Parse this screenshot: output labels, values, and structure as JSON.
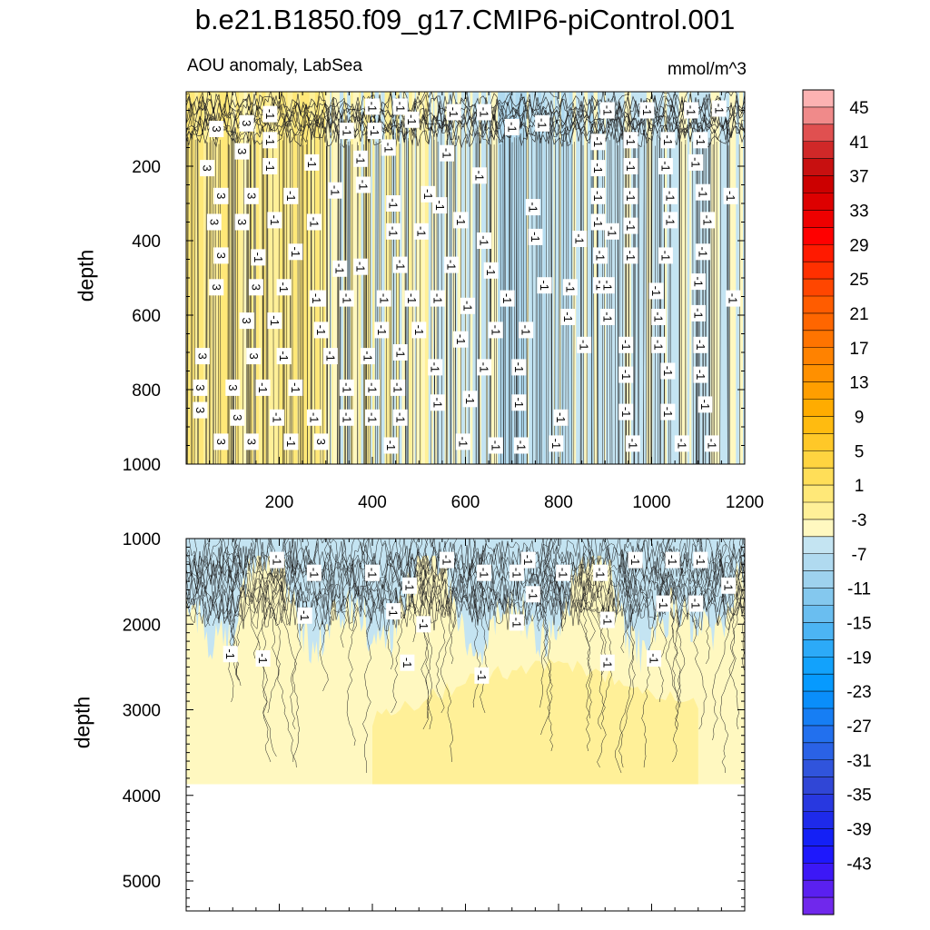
{
  "title": "b.e21.B1850.f09_g17.CMIP6-piControl.001",
  "subtitle": "AOU anomaly, LabSea",
  "units": "mmol/m^3",
  "chart_data": [
    {
      "type": "contour",
      "panel": "upper",
      "xlabel": "",
      "ylabel": "depth",
      "xlim": [
        0,
        1200
      ],
      "ylim": [
        1000,
        0
      ],
      "xticks": [
        "200",
        "400",
        "600",
        "800",
        "1000",
        "1200"
      ],
      "xtick_values": [
        200,
        400,
        600,
        800,
        1000,
        1200
      ],
      "yticks": [
        "200",
        "400",
        "600",
        "800",
        "1000"
      ],
      "ytick_values": [
        200,
        400,
        600,
        800,
        1000
      ],
      "zones": [
        {
          "x": [
            0,
            340
          ],
          "level": 3
        },
        {
          "x": [
            340,
            560
          ],
          "level": 1
        },
        {
          "x": [
            560,
            900
          ],
          "level": -1
        },
        {
          "x": [
            900,
            1200
          ],
          "level": -1
        }
      ],
      "labels": [
        {
          "text": "3",
          "x": 65,
          "y": 100
        },
        {
          "text": "3",
          "x": 130,
          "y": 85
        },
        {
          "text": "-1",
          "x": 180,
          "y": 60
        },
        {
          "text": "3",
          "x": 120,
          "y": 160
        },
        {
          "text": "-1",
          "x": 180,
          "y": 130
        },
        {
          "text": "3",
          "x": 45,
          "y": 205
        },
        {
          "text": "-1",
          "x": 180,
          "y": 200
        },
        {
          "text": "-1",
          "x": 270,
          "y": 190
        },
        {
          "text": "3",
          "x": 75,
          "y": 280
        },
        {
          "text": "3",
          "x": 140,
          "y": 280
        },
        {
          "text": "-1",
          "x": 225,
          "y": 280
        },
        {
          "text": "3",
          "x": 60,
          "y": 350
        },
        {
          "text": "3",
          "x": 120,
          "y": 350
        },
        {
          "text": "-1",
          "x": 190,
          "y": 345
        },
        {
          "text": "-1",
          "x": 275,
          "y": 350
        },
        {
          "text": "3",
          "x": 75,
          "y": 440
        },
        {
          "text": "-1",
          "x": 155,
          "y": 445
        },
        {
          "text": "-1",
          "x": 235,
          "y": 430
        },
        {
          "text": "3",
          "x": 65,
          "y": 525
        },
        {
          "text": "3",
          "x": 150,
          "y": 525
        },
        {
          "text": "-1",
          "x": 210,
          "y": 525
        },
        {
          "text": "-1",
          "x": 285,
          "y": 555
        },
        {
          "text": "3",
          "x": 130,
          "y": 615
        },
        {
          "text": "-1",
          "x": 190,
          "y": 615
        },
        {
          "text": "-1",
          "x": 290,
          "y": 640
        },
        {
          "text": "3",
          "x": 35,
          "y": 710
        },
        {
          "text": "3",
          "x": 145,
          "y": 710
        },
        {
          "text": "-1",
          "x": 210,
          "y": 710
        },
        {
          "text": "3",
          "x": 30,
          "y": 795
        },
        {
          "text": "3",
          "x": 100,
          "y": 795
        },
        {
          "text": "-1",
          "x": 165,
          "y": 795
        },
        {
          "text": "-1",
          "x": 235,
          "y": 795
        },
        {
          "text": "3",
          "x": 30,
          "y": 855
        },
        {
          "text": "3",
          "x": 110,
          "y": 875
        },
        {
          "text": "-1",
          "x": 195,
          "y": 875
        },
        {
          "text": "-1",
          "x": 275,
          "y": 875
        },
        {
          "text": "3",
          "x": 75,
          "y": 940
        },
        {
          "text": "3",
          "x": 140,
          "y": 940
        },
        {
          "text": "-1",
          "x": 225,
          "y": 940
        },
        {
          "text": "3",
          "x": 290,
          "y": 940
        },
        {
          "text": "-1",
          "x": 400,
          "y": 40
        },
        {
          "text": "-1",
          "x": 460,
          "y": 40
        },
        {
          "text": "-1",
          "x": 345,
          "y": 105
        },
        {
          "text": "-1",
          "x": 405,
          "y": 105
        },
        {
          "text": "-1",
          "x": 485,
          "y": 75
        },
        {
          "text": "-1",
          "x": 575,
          "y": 55
        },
        {
          "text": "-1",
          "x": 640,
          "y": 55
        },
        {
          "text": "-1",
          "x": 700,
          "y": 95
        },
        {
          "text": "-1",
          "x": 765,
          "y": 85
        },
        {
          "text": "-1",
          "x": 435,
          "y": 150
        },
        {
          "text": "-1",
          "x": 375,
          "y": 180
        },
        {
          "text": "-1",
          "x": 560,
          "y": 165
        },
        {
          "text": "-1",
          "x": 630,
          "y": 225
        },
        {
          "text": "-1",
          "x": 520,
          "y": 275
        },
        {
          "text": "-1",
          "x": 320,
          "y": 265
        },
        {
          "text": "-1",
          "x": 380,
          "y": 250
        },
        {
          "text": "-1",
          "x": 445,
          "y": 300
        },
        {
          "text": "-1",
          "x": 545,
          "y": 305
        },
        {
          "text": "-1",
          "x": 445,
          "y": 375
        },
        {
          "text": "-1",
          "x": 505,
          "y": 375
        },
        {
          "text": "-1",
          "x": 590,
          "y": 345
        },
        {
          "text": "-1",
          "x": 640,
          "y": 400
        },
        {
          "text": "-1",
          "x": 745,
          "y": 310
        },
        {
          "text": "-1",
          "x": 330,
          "y": 475
        },
        {
          "text": "-1",
          "x": 375,
          "y": 470
        },
        {
          "text": "-1",
          "x": 460,
          "y": 465
        },
        {
          "text": "-1",
          "x": 570,
          "y": 465
        },
        {
          "text": "-1",
          "x": 655,
          "y": 480
        },
        {
          "text": "-1",
          "x": 750,
          "y": 390
        },
        {
          "text": "-1",
          "x": 845,
          "y": 395
        },
        {
          "text": "-1",
          "x": 915,
          "y": 375
        },
        {
          "text": "-1",
          "x": 280,
          "y": 555
        },
        {
          "text": "-1",
          "x": 345,
          "y": 555
        },
        {
          "text": "-1",
          "x": 425,
          "y": 555
        },
        {
          "text": "-1",
          "x": 485,
          "y": 555
        },
        {
          "text": "-1",
          "x": 540,
          "y": 555
        },
        {
          "text": "-1",
          "x": 605,
          "y": 575
        },
        {
          "text": "-1",
          "x": 690,
          "y": 555
        },
        {
          "text": "-1",
          "x": 770,
          "y": 520
        },
        {
          "text": "-1",
          "x": 825,
          "y": 525
        },
        {
          "text": "-1",
          "x": 890,
          "y": 520
        },
        {
          "text": "-1",
          "x": 420,
          "y": 640
        },
        {
          "text": "-1",
          "x": 500,
          "y": 640
        },
        {
          "text": "-1",
          "x": 590,
          "y": 665
        },
        {
          "text": "-1",
          "x": 665,
          "y": 640
        },
        {
          "text": "-1",
          "x": 730,
          "y": 640
        },
        {
          "text": "-1",
          "x": 820,
          "y": 605
        },
        {
          "text": "-1",
          "x": 855,
          "y": 680
        },
        {
          "text": "-1",
          "x": 310,
          "y": 710
        },
        {
          "text": "-1",
          "x": 390,
          "y": 710
        },
        {
          "text": "-1",
          "x": 460,
          "y": 700
        },
        {
          "text": "-1",
          "x": 535,
          "y": 740
        },
        {
          "text": "-1",
          "x": 640,
          "y": 740
        },
        {
          "text": "-1",
          "x": 715,
          "y": 740
        },
        {
          "text": "-1",
          "x": 345,
          "y": 795
        },
        {
          "text": "-1",
          "x": 400,
          "y": 795
        },
        {
          "text": "-1",
          "x": 455,
          "y": 795
        },
        {
          "text": "-1",
          "x": 540,
          "y": 835
        },
        {
          "text": "-1",
          "x": 610,
          "y": 825
        },
        {
          "text": "-1",
          "x": 715,
          "y": 835
        },
        {
          "text": "-1",
          "x": 345,
          "y": 875
        },
        {
          "text": "-1",
          "x": 400,
          "y": 875
        },
        {
          "text": "-1",
          "x": 460,
          "y": 875
        },
        {
          "text": "-1",
          "x": 805,
          "y": 875
        },
        {
          "text": "-1",
          "x": 440,
          "y": 950
        },
        {
          "text": "-1",
          "x": 595,
          "y": 940
        },
        {
          "text": "-1",
          "x": 665,
          "y": 950
        },
        {
          "text": "-1",
          "x": 720,
          "y": 950
        },
        {
          "text": "-1",
          "x": 795,
          "y": 945
        },
        {
          "text": "-1",
          "x": 905,
          "y": 50
        },
        {
          "text": "-1",
          "x": 990,
          "y": 50
        },
        {
          "text": "-1",
          "x": 1085,
          "y": 50
        },
        {
          "text": "-1",
          "x": 1145,
          "y": 45
        },
        {
          "text": "-1",
          "x": 885,
          "y": 135
        },
        {
          "text": "-1",
          "x": 955,
          "y": 130
        },
        {
          "text": "-1",
          "x": 1035,
          "y": 130
        },
        {
          "text": "-1",
          "x": 1105,
          "y": 130
        },
        {
          "text": "-1",
          "x": 885,
          "y": 205
        },
        {
          "text": "-1",
          "x": 955,
          "y": 200
        },
        {
          "text": "-1",
          "x": 1030,
          "y": 200
        },
        {
          "text": "-1",
          "x": 1095,
          "y": 190
        },
        {
          "text": "-1",
          "x": 885,
          "y": 280
        },
        {
          "text": "-1",
          "x": 955,
          "y": 280
        },
        {
          "text": "-1",
          "x": 1040,
          "y": 280
        },
        {
          "text": "-1",
          "x": 1110,
          "y": 270
        },
        {
          "text": "-1",
          "x": 1170,
          "y": 280
        },
        {
          "text": "-1",
          "x": 885,
          "y": 350
        },
        {
          "text": "-1",
          "x": 955,
          "y": 360
        },
        {
          "text": "-1",
          "x": 1040,
          "y": 345
        },
        {
          "text": "-1",
          "x": 1120,
          "y": 345
        },
        {
          "text": "-1",
          "x": 890,
          "y": 440
        },
        {
          "text": "-1",
          "x": 955,
          "y": 440
        },
        {
          "text": "-1",
          "x": 1030,
          "y": 440
        },
        {
          "text": "-1",
          "x": 1110,
          "y": 430
        },
        {
          "text": "-1",
          "x": 905,
          "y": 520
        },
        {
          "text": "-1",
          "x": 1010,
          "y": 535
        },
        {
          "text": "-1",
          "x": 1100,
          "y": 510
        },
        {
          "text": "-1",
          "x": 1175,
          "y": 555
        },
        {
          "text": "-1",
          "x": 905,
          "y": 605
        },
        {
          "text": "-1",
          "x": 1015,
          "y": 605
        },
        {
          "text": "-1",
          "x": 1100,
          "y": 595
        },
        {
          "text": "-1",
          "x": 945,
          "y": 680
        },
        {
          "text": "-1",
          "x": 1015,
          "y": 680
        },
        {
          "text": "-1",
          "x": 1105,
          "y": 680
        },
        {
          "text": "-1",
          "x": 945,
          "y": 760
        },
        {
          "text": "-1",
          "x": 1035,
          "y": 750
        },
        {
          "text": "-1",
          "x": 1105,
          "y": 760
        },
        {
          "text": "-1",
          "x": 945,
          "y": 860
        },
        {
          "text": "-1",
          "x": 1035,
          "y": 860
        },
        {
          "text": "-1",
          "x": 1115,
          "y": 840
        },
        {
          "text": "-1",
          "x": 960,
          "y": 945
        },
        {
          "text": "-1",
          "x": 1065,
          "y": 945
        },
        {
          "text": "-1",
          "x": 1130,
          "y": 945
        }
      ]
    },
    {
      "type": "contour",
      "panel": "lower",
      "xlabel": "",
      "ylabel": "depth",
      "xlim": [
        0,
        1200
      ],
      "ylim": [
        5350,
        1000
      ],
      "data_bottom": 3870,
      "yticks": [
        "1000",
        "2000",
        "3000",
        "4000",
        "5000"
      ],
      "ytick_values": [
        1000,
        2000,
        3000,
        4000,
        5000
      ],
      "labels": [
        {
          "text": "-1",
          "x": 195,
          "y": 1250
        },
        {
          "text": "-1",
          "x": 275,
          "y": 1400
        },
        {
          "text": "-1",
          "x": 400,
          "y": 1400
        },
        {
          "text": "-1",
          "x": 480,
          "y": 1550
        },
        {
          "text": "-1",
          "x": 560,
          "y": 1250
        },
        {
          "text": "-1",
          "x": 640,
          "y": 1400
        },
        {
          "text": "-1",
          "x": 735,
          "y": 1250
        },
        {
          "text": "-1",
          "x": 810,
          "y": 1400
        },
        {
          "text": "-1",
          "x": 890,
          "y": 1400
        },
        {
          "text": "-1",
          "x": 965,
          "y": 1250
        },
        {
          "text": "-1",
          "x": 1045,
          "y": 1250
        },
        {
          "text": "-1",
          "x": 1105,
          "y": 1250
        },
        {
          "text": "-1",
          "x": 1165,
          "y": 1550
        },
        {
          "text": "-1",
          "x": 255,
          "y": 1900
        },
        {
          "text": "-1",
          "x": 445,
          "y": 1850
        },
        {
          "text": "-1",
          "x": 510,
          "y": 2000
        },
        {
          "text": "-1",
          "x": 710,
          "y": 1400
        },
        {
          "text": "-1",
          "x": 745,
          "y": 1650
        },
        {
          "text": "-1",
          "x": 710,
          "y": 1980
        },
        {
          "text": "-1",
          "x": 905,
          "y": 1950
        },
        {
          "text": "-1",
          "x": 1025,
          "y": 1760
        },
        {
          "text": "-1",
          "x": 1095,
          "y": 1760
        },
        {
          "text": "-1",
          "x": 95,
          "y": 2350
        },
        {
          "text": "-1",
          "x": 165,
          "y": 2400
        },
        {
          "text": "-1",
          "x": 475,
          "y": 2450
        },
        {
          "text": "-1",
          "x": 635,
          "y": 2600
        },
        {
          "text": "-1",
          "x": 905,
          "y": 2450
        },
        {
          "text": "-1",
          "x": 1005,
          "y": 2400
        }
      ]
    }
  ],
  "colorbar": {
    "levels": [
      "45",
      "41",
      "37",
      "33",
      "29",
      "25",
      "21",
      "17",
      "13",
      "9",
      "5",
      "1",
      "-3",
      "-7",
      "-11",
      "-15",
      "-19",
      "-23",
      "-27",
      "-31",
      "-35",
      "-39",
      "-43"
    ],
    "colors": [
      "#FCB2B2",
      "#F08A8A",
      "#E05050",
      "#D02828",
      "#C81010",
      "#CC0000",
      "#DD0000",
      "#EE0000",
      "#FF0000",
      "#FF1A00",
      "#FF3000",
      "#FF4600",
      "#FF5C00",
      "#FF6600",
      "#FF7400",
      "#FF8200",
      "#FF9000",
      "#FF9E00",
      "#FFAC00",
      "#FFBB10",
      "#FFC828",
      "#FFD440",
      "#FFDE58",
      "#FFE878",
      "#FFF098",
      "#FFF8C0",
      "#C4E4F2",
      "#B0DAF0",
      "#9ED2EE",
      "#84C8EE",
      "#6ABEF0",
      "#4CB4F4",
      "#2CAAF8",
      "#12A2FC",
      "#069AFE",
      "#0A8EFA",
      "#167EF4",
      "#2270EE",
      "#2A62E6",
      "#3054DC",
      "#3046D6",
      "#2838E0",
      "#1E2AEA",
      "#1420F6",
      "#1E18FC",
      "#3C18F6",
      "#5A20F0",
      "#7028EC"
    ]
  }
}
